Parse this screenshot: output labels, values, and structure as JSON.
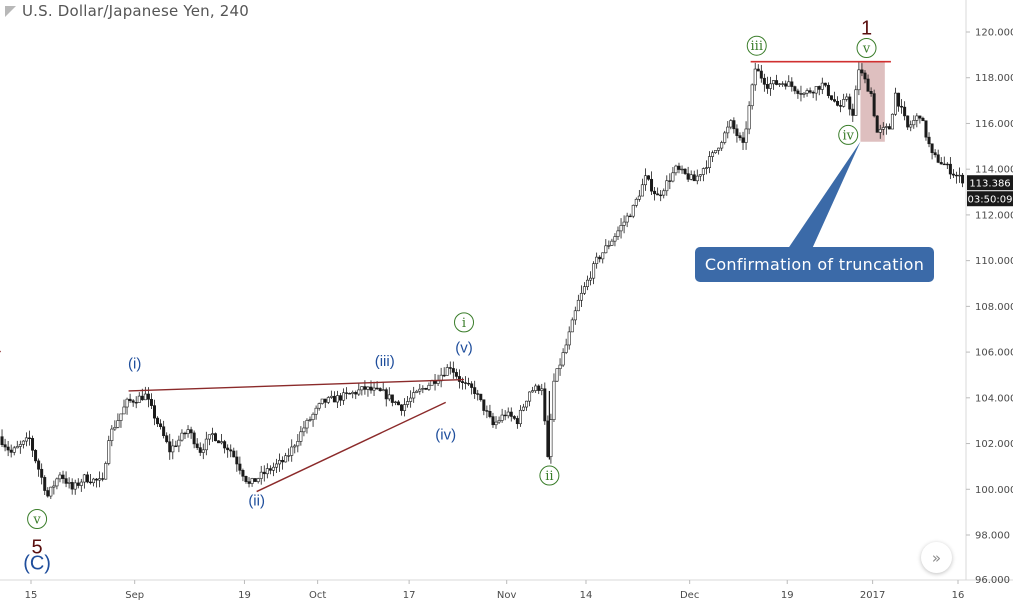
{
  "header": {
    "title": "U.S. Dollar/Japanese Yen, 240"
  },
  "callout": {
    "text": "Confirmation of truncation"
  },
  "price_badge": {
    "price": "113.386",
    "countdown": "03:50:09"
  },
  "icons": {
    "title": "triangle-flag-icon",
    "nav": "chevron-double-right-icon",
    "nav_glyph": "»"
  },
  "colors": {
    "candle": "#1a1a1a",
    "trendline": "#8b2a2a",
    "resistance": "#d03030",
    "label_blue": "#1f4e9c",
    "label_green": "#3a7d2a",
    "label_wave": "#5a0f0f",
    "callout_bg": "#3b6aa8",
    "truncation_zone": "#d8b4b4",
    "badge": "#1a1a1a"
  },
  "chart_data": {
    "type": "line",
    "render": "candlestick",
    "y_axis": {
      "min": 96,
      "max": 121,
      "ticks": [
        "98.000",
        "100.000",
        "102.000",
        "104.000",
        "106.000",
        "108.000",
        "110.000",
        "112.000",
        "114.000",
        "116.000",
        "118.000",
        "120.000"
      ],
      "partial_tick": "96.000"
    },
    "x_axis": {
      "ticks": [
        {
          "label": "15",
          "x": 0
        },
        {
          "label": "Sep",
          "x": 17
        },
        {
          "label": "19",
          "x": 35
        },
        {
          "label": "Oct",
          "x": 47
        },
        {
          "label": "17",
          "x": 62
        },
        {
          "label": "Nov",
          "x": 78
        },
        {
          "label": "14",
          "x": 91
        },
        {
          "label": "Dec",
          "x": 108
        },
        {
          "label": "19",
          "x": 124
        },
        {
          "label": "2017",
          "x": 138
        },
        {
          "label": "16",
          "x": 152
        }
      ]
    },
    "x_range": [
      -5,
      155
    ],
    "price_path": [
      [
        -5,
        102.3
      ],
      [
        -3,
        101.6
      ],
      [
        0,
        102.2
      ],
      [
        1,
        101.3
      ],
      [
        3,
        99.7
      ],
      [
        5,
        100.7
      ],
      [
        7,
        100.0
      ],
      [
        9,
        100.5
      ],
      [
        12,
        100.3
      ],
      [
        13,
        102.3
      ],
      [
        16,
        103.8
      ],
      [
        19,
        104.1
      ],
      [
        21,
        102.9
      ],
      [
        23,
        101.7
      ],
      [
        26,
        102.6
      ],
      [
        28,
        101.7
      ],
      [
        30,
        102.4
      ],
      [
        33,
        101.7
      ],
      [
        36,
        100.2
      ],
      [
        39,
        100.8
      ],
      [
        42,
        101.3
      ],
      [
        45,
        102.7
      ],
      [
        48,
        103.8
      ],
      [
        52,
        104.1
      ],
      [
        55,
        104.4
      ],
      [
        58,
        104.2
      ],
      [
        61,
        103.6
      ],
      [
        64,
        104.3
      ],
      [
        67,
        104.9
      ],
      [
        69,
        105.4
      ],
      [
        71,
        104.6
      ],
      [
        73,
        104.3
      ],
      [
        76,
        102.8
      ],
      [
        78,
        103.3
      ],
      [
        80,
        103.0
      ],
      [
        82,
        104.3
      ],
      [
        84,
        104.5
      ],
      [
        85,
        101.3
      ],
      [
        86,
        104.7
      ],
      [
        88,
        106.3
      ],
      [
        90,
        108.2
      ],
      [
        93,
        110.0
      ],
      [
        96,
        111.1
      ],
      [
        99,
        112.3
      ],
      [
        101,
        113.6
      ],
      [
        103,
        112.8
      ],
      [
        106,
        114.0
      ],
      [
        109,
        113.5
      ],
      [
        112,
        114.6
      ],
      [
        115,
        116.0
      ],
      [
        117,
        115.0
      ],
      [
        119,
        118.4
      ],
      [
        121,
        117.7
      ],
      [
        124,
        117.8
      ],
      [
        127,
        117.3
      ],
      [
        130,
        117.7
      ],
      [
        133,
        116.6
      ],
      [
        134,
        117.2
      ],
      [
        135,
        116.3
      ],
      [
        136,
        118.4
      ],
      [
        138,
        117.3
      ],
      [
        139,
        115.6
      ],
      [
        141,
        115.8
      ],
      [
        142,
        117.3
      ],
      [
        144,
        115.8
      ],
      [
        146,
        116.4
      ],
      [
        148,
        114.6
      ],
      [
        150,
        114.2
      ],
      [
        152,
        113.7
      ],
      [
        154,
        113.4
      ]
    ],
    "annotations": [
      {
        "text": "(i)",
        "color": "blue",
        "x": 17,
        "y": 105.5
      },
      {
        "text": "(ii)",
        "color": "blue",
        "x": 37,
        "y": 99.5
      },
      {
        "text": "(iii)",
        "color": "blue",
        "x": 58,
        "y": 105.6
      },
      {
        "text": "(iv)",
        "color": "blue",
        "x": 68,
        "y": 102.4
      },
      {
        "text": "(v)",
        "color": "blue",
        "x": 71,
        "y": 106.2
      },
      {
        "text": "(C)",
        "color": "blue",
        "x": 1,
        "y": 96.7
      },
      {
        "text": "i",
        "color": "green-circle",
        "x": 71,
        "y": 107.3
      },
      {
        "text": "ii",
        "color": "green-circle",
        "x": 85,
        "y": 100.6
      },
      {
        "text": "iii",
        "color": "green-circle",
        "x": 119,
        "y": 119.4
      },
      {
        "text": "iv",
        "color": "green-circle",
        "x": 134,
        "y": 115.5
      },
      {
        "text": "v",
        "color": "green-circle",
        "x": 137,
        "y": 119.3
      },
      {
        "text": "v",
        "color": "green-circle",
        "x": 1,
        "y": 98.7
      },
      {
        "text": "5",
        "color": "wave",
        "x": 1,
        "y": 97.5
      },
      {
        "text": "1",
        "color": "wave",
        "x": 137,
        "y": 120.2
      }
    ],
    "lines": [
      {
        "name": "upper-trendline",
        "from": [
          16,
          104.3
        ],
        "to": [
          71,
          104.8
        ],
        "color": "trendline"
      },
      {
        "name": "lower-trendline",
        "from": [
          37,
          99.9
        ],
        "to": [
          68,
          103.8
        ],
        "color": "trendline"
      },
      {
        "name": "wave-1-top-resistance",
        "from": [
          118,
          118.7
        ],
        "to": [
          141,
          118.7
        ],
        "color": "resistance"
      },
      {
        "name": "prior-trend-stub",
        "from": [
          -6,
          106.3
        ],
        "to": [
          -5,
          106.0
        ],
        "color": "trendline"
      },
      {
        "name": "callout-pointer",
        "from": [
          123,
          110.6
        ],
        "to": [
          136,
          115.2
        ],
        "color": "callout_bg"
      }
    ],
    "shaded_zones": [
      {
        "name": "truncation-zone",
        "x0": 136,
        "x1": 140,
        "y0": 115.2,
        "y1": 118.7
      }
    ],
    "current_price": 113.386
  }
}
